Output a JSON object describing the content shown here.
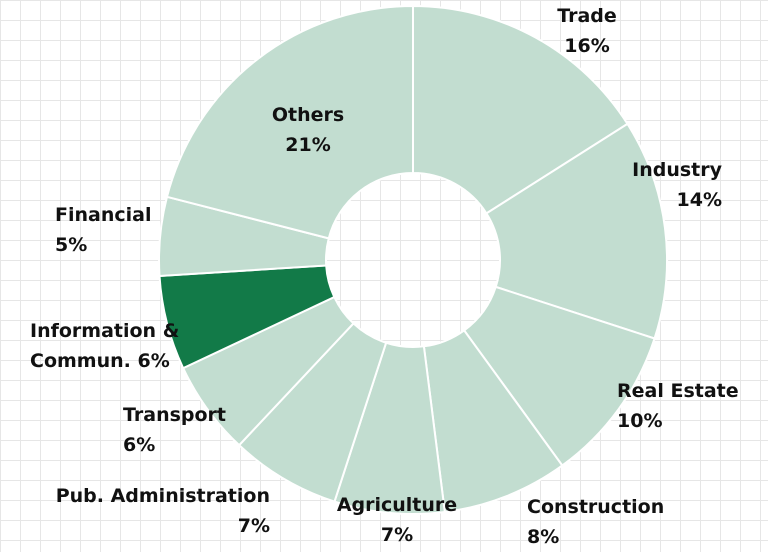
{
  "chart_data": {
    "type": "donut",
    "categories": [
      "Trade",
      "Industry",
      "Real Estate",
      "Construction",
      "Agriculture",
      "Pub. Administration",
      "Transport",
      "Information & Commun.",
      "Financial",
      "Others"
    ],
    "values": [
      16,
      14,
      10,
      8,
      7,
      7,
      6,
      6,
      5,
      21
    ],
    "value_labels": [
      "16%",
      "14%",
      "10%",
      "8%",
      "7%",
      "7%",
      "6%",
      "6%",
      "5%",
      "21%"
    ],
    "colors": [
      "#c2ddd0",
      "#c2ddd0",
      "#c2ddd0",
      "#c2ddd0",
      "#c2ddd0",
      "#c2ddd0",
      "#c2ddd0",
      "#127a48",
      "#c2ddd0",
      "#c2ddd0"
    ]
  }
}
